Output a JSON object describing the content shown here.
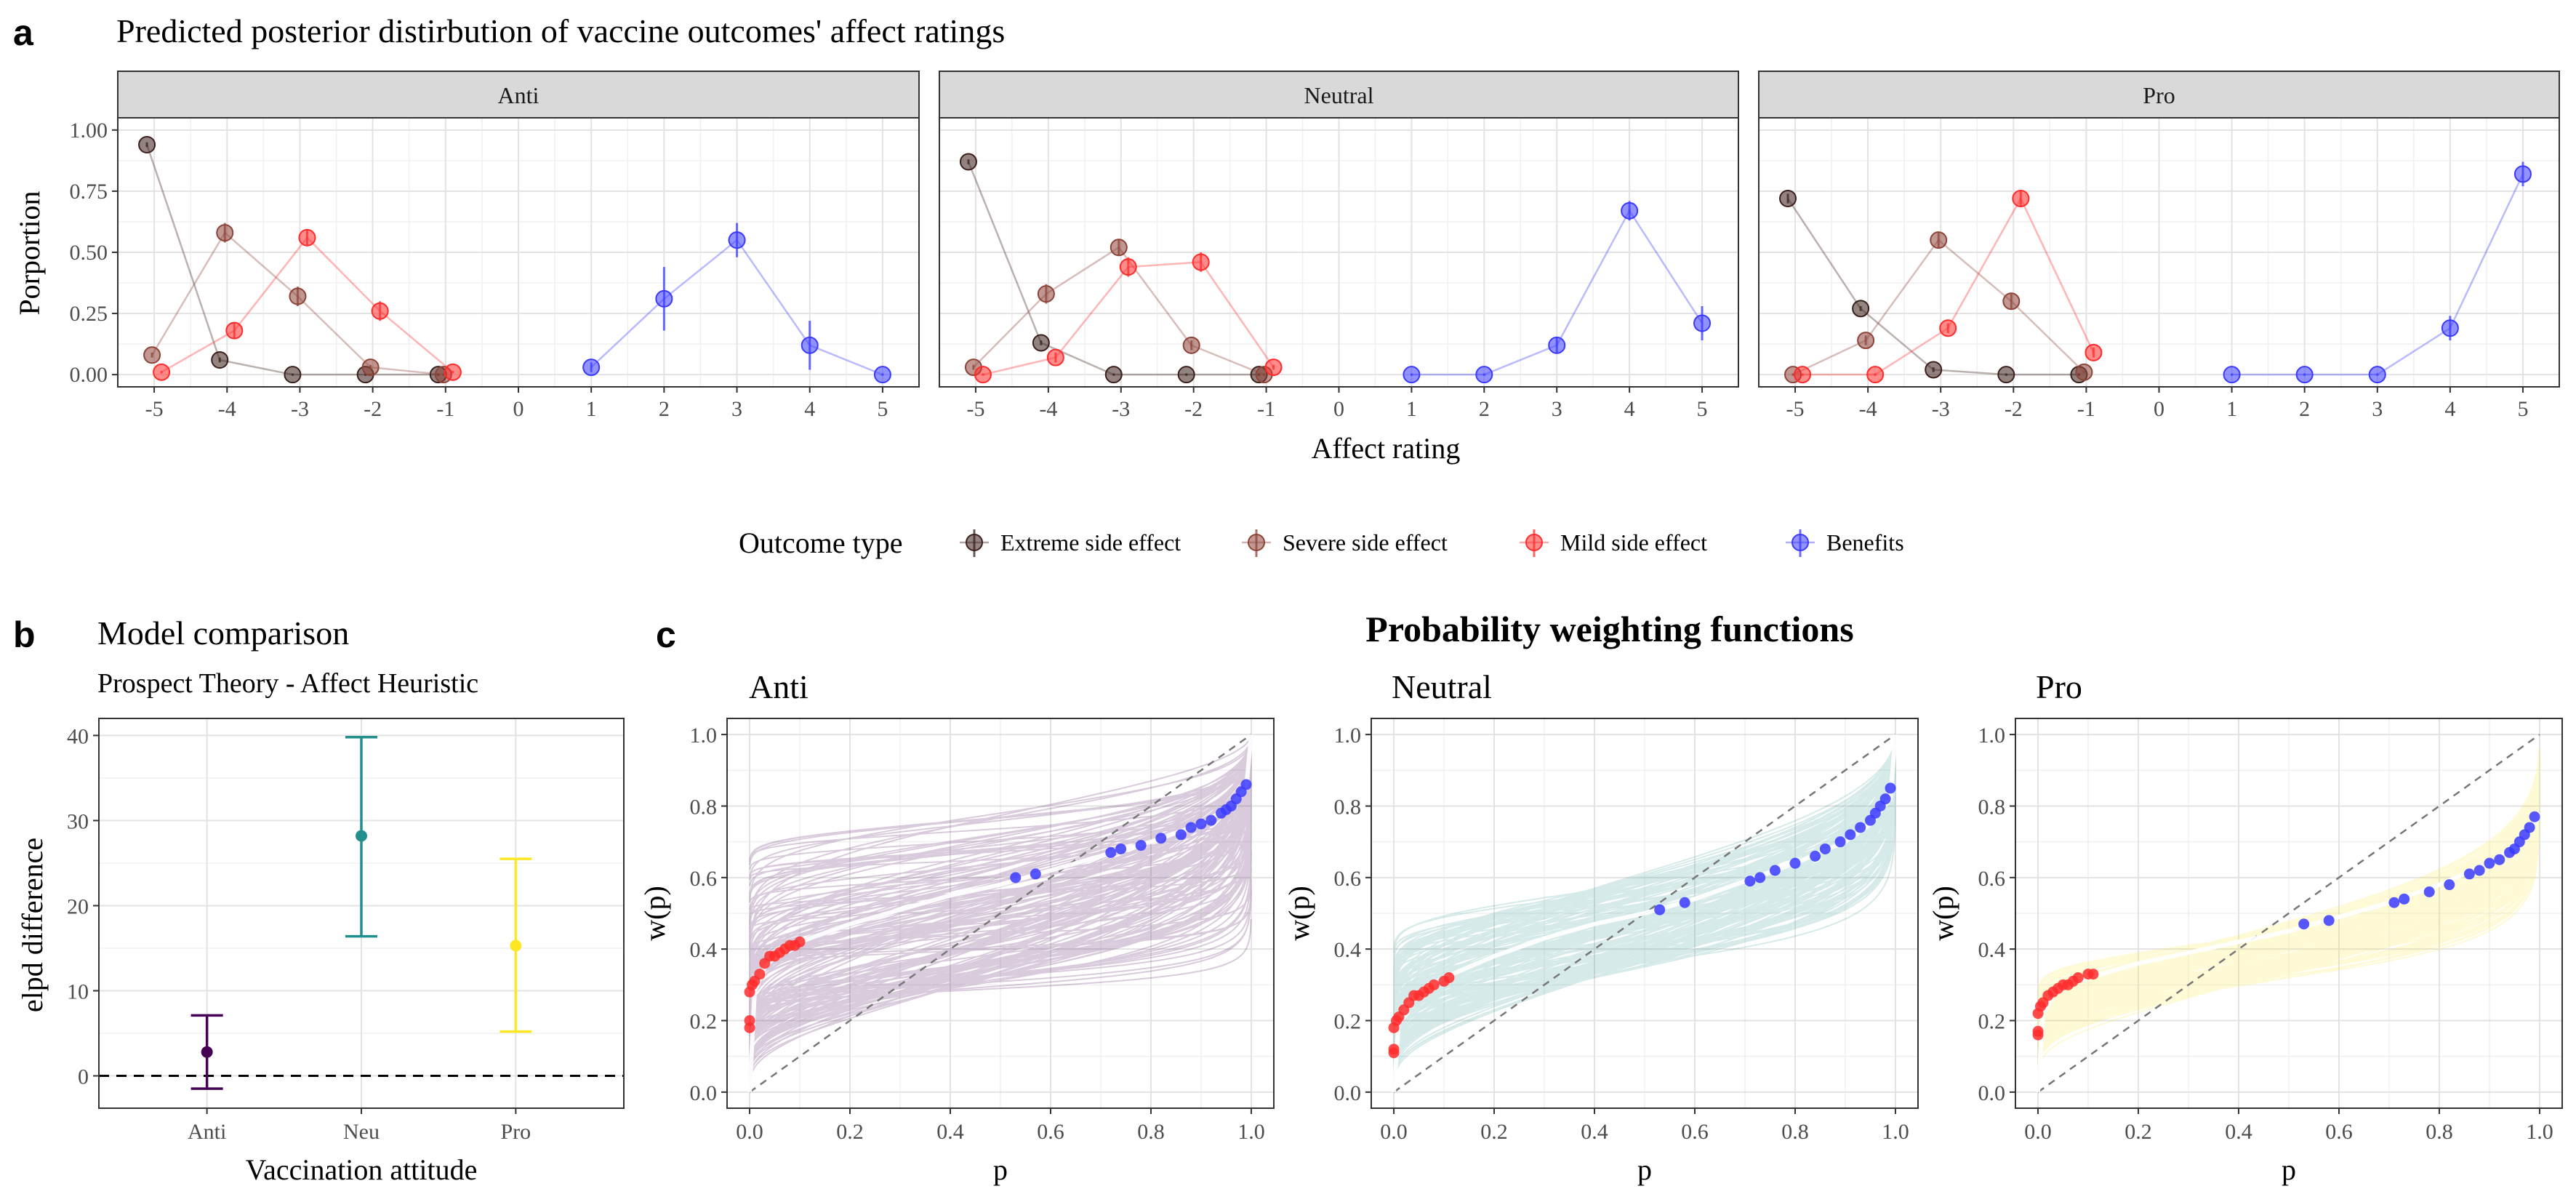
{
  "figure": {
    "tags": {
      "a": "a",
      "b": "b",
      "c": "c"
    }
  },
  "chart_data": [
    {
      "id": "a",
      "type": "line",
      "title": "Predicted posterior distirbution of vaccine outcomes' affect ratings",
      "xlabel": "Affect rating",
      "ylabel": "Porportion",
      "xlim": [
        -5.5,
        5.5
      ],
      "ylim": [
        -0.05,
        1.05
      ],
      "xticks": [
        -5,
        -4,
        -3,
        -2,
        -1,
        0,
        1,
        2,
        3,
        4,
        5
      ],
      "yticks": [
        0,
        0.25,
        0.5,
        0.75,
        1.0
      ],
      "ytick_labels": [
        "0.00",
        "0.25",
        "0.50",
        "0.75",
        "1.00"
      ],
      "grid": true,
      "legend": {
        "title": "Outcome type",
        "placement": "bottom",
        "entries": [
          {
            "name": "Extreme side effect",
            "color": "#3b1f1b"
          },
          {
            "name": "Severe side effect",
            "color": "#8e4338"
          },
          {
            "name": "Mild side effect",
            "color": "#ff2b2b"
          },
          {
            "name": "Benefits",
            "color": "#3a3aff"
          }
        ]
      },
      "facets": [
        {
          "label": "Anti",
          "series": [
            {
              "name": "Extreme side effect",
              "x": [
                -5,
                -4,
                -3,
                -2,
                -1
              ],
              "y": [
                0.94,
                0.06,
                0.0,
                0.0,
                0.0
              ],
              "err": [
                0.01,
                0.01,
                0.005,
                0.005,
                0.005
              ]
            },
            {
              "name": "Severe side effect",
              "x": [
                -5,
                -4,
                -3,
                -2,
                -1
              ],
              "y": [
                0.08,
                0.58,
                0.32,
                0.03,
                0.0
              ],
              "err": [
                0.01,
                0.04,
                0.04,
                0.01,
                0.005
              ]
            },
            {
              "name": "Mild side effect",
              "x": [
                -5,
                -4,
                -3,
                -2,
                -1
              ],
              "y": [
                0.01,
                0.18,
                0.56,
                0.26,
                0.01
              ],
              "err": [
                0.005,
                0.03,
                0.03,
                0.04,
                0.005
              ]
            },
            {
              "name": "Benefits",
              "x": [
                1,
                2,
                3,
                4,
                5
              ],
              "y": [
                0.03,
                0.31,
                0.55,
                0.12,
                0.0
              ],
              "err": [
                0.02,
                0.13,
                0.07,
                0.1,
                0.005
              ]
            }
          ]
        },
        {
          "label": "Neutral",
          "series": [
            {
              "name": "Extreme side effect",
              "x": [
                -5,
                -4,
                -3,
                -2,
                -1
              ],
              "y": [
                0.87,
                0.13,
                0.0,
                0.0,
                0.0
              ],
              "err": [
                0.01,
                0.01,
                0.005,
                0.005,
                0.005
              ]
            },
            {
              "name": "Severe side effect",
              "x": [
                -5,
                -4,
                -3,
                -2,
                -1
              ],
              "y": [
                0.03,
                0.33,
                0.52,
                0.12,
                0.0
              ],
              "err": [
                0.01,
                0.04,
                0.03,
                0.02,
                0.005
              ]
            },
            {
              "name": "Mild side effect",
              "x": [
                -5,
                -4,
                -3,
                -2,
                -1
              ],
              "y": [
                0.0,
                0.07,
                0.44,
                0.46,
                0.03
              ],
              "err": [
                0.005,
                0.02,
                0.04,
                0.04,
                0.01
              ]
            },
            {
              "name": "Benefits",
              "x": [
                1,
                2,
                3,
                4,
                5
              ],
              "y": [
                0.0,
                0.0,
                0.12,
                0.67,
                0.21
              ],
              "err": [
                0.005,
                0.005,
                0.03,
                0.04,
                0.07
              ]
            }
          ]
        },
        {
          "label": "Pro",
          "series": [
            {
              "name": "Extreme side effect",
              "x": [
                -5,
                -4,
                -3,
                -2,
                -1
              ],
              "y": [
                0.72,
                0.27,
                0.02,
                0.0,
                0.0
              ],
              "err": [
                0.02,
                0.01,
                0.01,
                0.005,
                0.005
              ]
            },
            {
              "name": "Severe side effect",
              "x": [
                -5,
                -4,
                -3,
                -2,
                -1
              ],
              "y": [
                0.0,
                0.14,
                0.55,
                0.3,
                0.01
              ],
              "err": [
                0.005,
                0.02,
                0.03,
                0.03,
                0.005
              ]
            },
            {
              "name": "Mild side effect",
              "x": [
                -5,
                -4,
                -3,
                -2,
                -1
              ],
              "y": [
                0.0,
                0.0,
                0.19,
                0.72,
                0.09
              ],
              "err": [
                0.005,
                0.005,
                0.02,
                0.03,
                0.02
              ]
            },
            {
              "name": "Benefits",
              "x": [
                1,
                2,
                3,
                4,
                5
              ],
              "y": [
                0.0,
                0.0,
                0.0,
                0.19,
                0.82
              ],
              "err": [
                0.005,
                0.005,
                0.005,
                0.05,
                0.05
              ]
            }
          ]
        }
      ]
    },
    {
      "id": "b",
      "type": "scatter",
      "title": "Model comparison",
      "subtitle": "Prospect Theory - Affect Heuristic",
      "xlabel": "Vaccination attitude",
      "ylabel": "elpd difference",
      "categories": [
        "Anti",
        "Neu",
        "Pro"
      ],
      "values": [
        2.8,
        28.2,
        15.3
      ],
      "lower": [
        -1.5,
        16.4,
        5.2
      ],
      "upper": [
        7.1,
        39.8,
        25.5
      ],
      "colors": [
        "#440154",
        "#21908c",
        "#fde725"
      ],
      "ylim": [
        -3.8,
        42
      ],
      "yticks": [
        0,
        10,
        20,
        30,
        40
      ],
      "reference_line": 0,
      "grid": true
    },
    {
      "id": "c",
      "type": "line",
      "title": "Probability weighting functions",
      "xlabel": "p",
      "ylabel": "w(p)",
      "xlim": [
        0,
        1
      ],
      "ylim": [
        0,
        1
      ],
      "xticks": [
        0,
        0.2,
        0.4,
        0.6,
        0.8,
        1.0
      ],
      "xtick_labels": [
        "0.0",
        "0.2",
        "0.4",
        "0.6",
        "0.8",
        "1.0"
      ],
      "yticks": [
        0,
        0.2,
        0.4,
        0.6,
        0.8,
        1.0
      ],
      "ytick_labels": [
        "0.0",
        "0.2",
        "0.4",
        "0.6",
        "0.8",
        "1.0"
      ],
      "grid": true,
      "identity_line": true,
      "facets": [
        {
          "label": "Anti",
          "color": "#440154",
          "mean_curve": {
            "p": [
              0,
              0.01,
              0.03,
              0.06,
              0.1,
              0.2,
              0.3,
              0.4,
              0.5,
              0.6,
              0.7,
              0.8,
              0.9,
              0.95,
              0.99,
              1.0
            ],
            "w": [
              0,
              0.28,
              0.35,
              0.39,
              0.42,
              0.47,
              0.51,
              0.55,
              0.58,
              0.62,
              0.66,
              0.7,
              0.75,
              0.79,
              0.85,
              1.0
            ]
          },
          "red_points": {
            "p": [
              0.0,
              0.0,
              0.0,
              0.005,
              0.01,
              0.02,
              0.03,
              0.04,
              0.05,
              0.06,
              0.07,
              0.08,
              0.09,
              0.1
            ],
            "w": [
              0.18,
              0.2,
              0.28,
              0.3,
              0.31,
              0.33,
              0.36,
              0.38,
              0.38,
              0.39,
              0.4,
              0.41,
              0.41,
              0.42
            ]
          },
          "blue_points": {
            "p": [
              0.53,
              0.57,
              0.72,
              0.74,
              0.78,
              0.82,
              0.86,
              0.88,
              0.9,
              0.92,
              0.94,
              0.95,
              0.96,
              0.97,
              0.98,
              0.99
            ],
            "w": [
              0.6,
              0.61,
              0.67,
              0.68,
              0.69,
              0.71,
              0.72,
              0.74,
              0.75,
              0.76,
              0.78,
              0.79,
              0.8,
              0.82,
              0.84,
              0.86
            ]
          }
        },
        {
          "label": "Neutral",
          "color": "#21908c",
          "mean_curve": {
            "p": [
              0,
              0.01,
              0.03,
              0.06,
              0.1,
              0.2,
              0.3,
              0.4,
              0.5,
              0.6,
              0.7,
              0.8,
              0.9,
              0.95,
              0.99,
              1.0
            ],
            "w": [
              0,
              0.2,
              0.25,
              0.29,
              0.32,
              0.38,
              0.43,
              0.47,
              0.5,
              0.54,
              0.59,
              0.64,
              0.7,
              0.75,
              0.82,
              1.0
            ]
          },
          "red_points": {
            "p": [
              0.0,
              0.0,
              0.0,
              0.005,
              0.01,
              0.02,
              0.03,
              0.04,
              0.05,
              0.06,
              0.07,
              0.08,
              0.1,
              0.11
            ],
            "w": [
              0.11,
              0.12,
              0.18,
              0.2,
              0.21,
              0.23,
              0.25,
              0.27,
              0.27,
              0.28,
              0.29,
              0.3,
              0.31,
              0.32
            ]
          },
          "blue_points": {
            "p": [
              0.53,
              0.58,
              0.71,
              0.73,
              0.76,
              0.8,
              0.84,
              0.86,
              0.89,
              0.91,
              0.93,
              0.95,
              0.96,
              0.97,
              0.98,
              0.99
            ],
            "w": [
              0.51,
              0.53,
              0.59,
              0.6,
              0.62,
              0.64,
              0.66,
              0.68,
              0.7,
              0.72,
              0.74,
              0.76,
              0.78,
              0.8,
              0.82,
              0.85
            ]
          }
        },
        {
          "label": "Pro",
          "color": "#fde725",
          "mean_curve": {
            "p": [
              0,
              0.01,
              0.03,
              0.06,
              0.1,
              0.2,
              0.3,
              0.4,
              0.5,
              0.6,
              0.7,
              0.8,
              0.9,
              0.95,
              0.99,
              1.0
            ],
            "w": [
              0,
              0.22,
              0.27,
              0.3,
              0.32,
              0.36,
              0.39,
              0.42,
              0.45,
              0.49,
              0.53,
              0.58,
              0.64,
              0.69,
              0.75,
              0.78
            ]
          },
          "red_points": {
            "p": [
              0.0,
              0.0,
              0.0,
              0.005,
              0.01,
              0.02,
              0.03,
              0.04,
              0.05,
              0.06,
              0.07,
              0.08,
              0.1,
              0.11
            ],
            "w": [
              0.16,
              0.17,
              0.22,
              0.24,
              0.25,
              0.27,
              0.28,
              0.29,
              0.3,
              0.3,
              0.31,
              0.32,
              0.33,
              0.33
            ]
          },
          "blue_points": {
            "p": [
              0.53,
              0.58,
              0.71,
              0.73,
              0.78,
              0.82,
              0.86,
              0.88,
              0.9,
              0.92,
              0.94,
              0.95,
              0.96,
              0.97,
              0.98,
              0.99
            ],
            "w": [
              0.47,
              0.48,
              0.53,
              0.54,
              0.56,
              0.58,
              0.61,
              0.62,
              0.64,
              0.65,
              0.67,
              0.68,
              0.7,
              0.72,
              0.74,
              0.77
            ]
          }
        }
      ]
    }
  ]
}
